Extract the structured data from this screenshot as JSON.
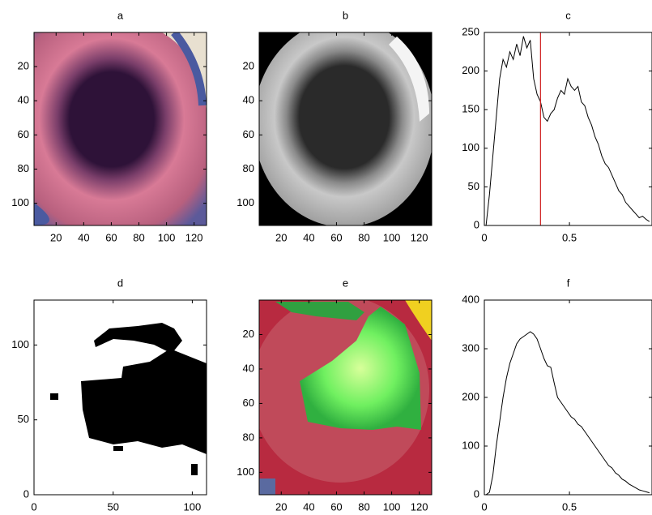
{
  "chart_data": [
    {
      "type": "image",
      "title": "a",
      "xlim": [
        4,
        129
      ],
      "ylim": [
        0,
        113
      ],
      "y_reversed": true,
      "xticks": [
        20,
        40,
        60,
        80,
        100,
        120
      ],
      "yticks": [
        20,
        40,
        60,
        80,
        100
      ]
    },
    {
      "type": "image",
      "title": "b",
      "xlim": [
        4,
        129
      ],
      "ylim": [
        0,
        113
      ],
      "y_reversed": true,
      "xticks": [
        20,
        40,
        60,
        80,
        100,
        120
      ],
      "yticks": [
        20,
        40,
        60,
        80,
        100
      ]
    },
    {
      "type": "line",
      "title": "c",
      "xlim": [
        0,
        0.985
      ],
      "ylim": [
        0,
        250
      ],
      "xticks": [
        0,
        0.5
      ],
      "yticks": [
        0,
        50,
        100,
        150,
        200,
        250
      ],
      "color": "#000000",
      "x": [
        0.01,
        0.03,
        0.05,
        0.07,
        0.09,
        0.11,
        0.13,
        0.15,
        0.17,
        0.19,
        0.21,
        0.23,
        0.25,
        0.27,
        0.29,
        0.31,
        0.33,
        0.35,
        0.37,
        0.39,
        0.41,
        0.43,
        0.45,
        0.47,
        0.49,
        0.51,
        0.53,
        0.55,
        0.57,
        0.59,
        0.61,
        0.63,
        0.65,
        0.67,
        0.69,
        0.71,
        0.73,
        0.75,
        0.77,
        0.79,
        0.81,
        0.83,
        0.85,
        0.87,
        0.89,
        0.91,
        0.93,
        0.95,
        0.97
      ],
      "values": [
        0,
        40,
        90,
        140,
        190,
        215,
        205,
        225,
        215,
        235,
        220,
        245,
        230,
        240,
        190,
        170,
        160,
        140,
        135,
        145,
        150,
        165,
        175,
        170,
        190,
        180,
        175,
        180,
        160,
        155,
        140,
        130,
        115,
        105,
        90,
        80,
        75,
        65,
        55,
        45,
        40,
        30,
        25,
        20,
        15,
        10,
        12,
        8,
        5
      ],
      "threshold": 0.33,
      "threshold_color": "#d02020"
    },
    {
      "type": "image",
      "title": "d",
      "xlim": [
        0,
        109
      ],
      "ylim": [
        0,
        130
      ],
      "y_reversed": false,
      "xticks": [
        0,
        50,
        100
      ],
      "yticks": [
        0,
        50,
        100
      ]
    },
    {
      "type": "image",
      "title": "e",
      "xlim": [
        4,
        129
      ],
      "ylim": [
        0,
        113
      ],
      "y_reversed": true,
      "xticks": [
        20,
        40,
        60,
        80,
        100,
        120
      ],
      "yticks": [
        20,
        40,
        60,
        80,
        100
      ]
    },
    {
      "type": "line",
      "title": "f",
      "xlim": [
        0,
        0.985
      ],
      "ylim": [
        0,
        400
      ],
      "xticks": [
        0,
        0.5
      ],
      "yticks": [
        0,
        100,
        200,
        300,
        400
      ],
      "color": "#000000",
      "x": [
        0.01,
        0.03,
        0.05,
        0.07,
        0.09,
        0.11,
        0.13,
        0.15,
        0.17,
        0.19,
        0.21,
        0.23,
        0.25,
        0.27,
        0.29,
        0.31,
        0.33,
        0.35,
        0.37,
        0.39,
        0.41,
        0.43,
        0.45,
        0.47,
        0.49,
        0.51,
        0.53,
        0.55,
        0.57,
        0.59,
        0.61,
        0.63,
        0.65,
        0.67,
        0.69,
        0.71,
        0.73,
        0.75,
        0.77,
        0.79,
        0.81,
        0.83,
        0.85,
        0.87,
        0.89,
        0.91,
        0.93,
        0.95,
        0.97
      ],
      "values": [
        0,
        5,
        40,
        100,
        150,
        200,
        240,
        270,
        290,
        310,
        320,
        325,
        330,
        335,
        330,
        320,
        300,
        280,
        265,
        262,
        230,
        200,
        190,
        180,
        170,
        160,
        155,
        145,
        140,
        130,
        120,
        110,
        100,
        90,
        80,
        70,
        60,
        55,
        45,
        40,
        32,
        28,
        22,
        18,
        14,
        10,
        8,
        6,
        4
      ]
    }
  ]
}
